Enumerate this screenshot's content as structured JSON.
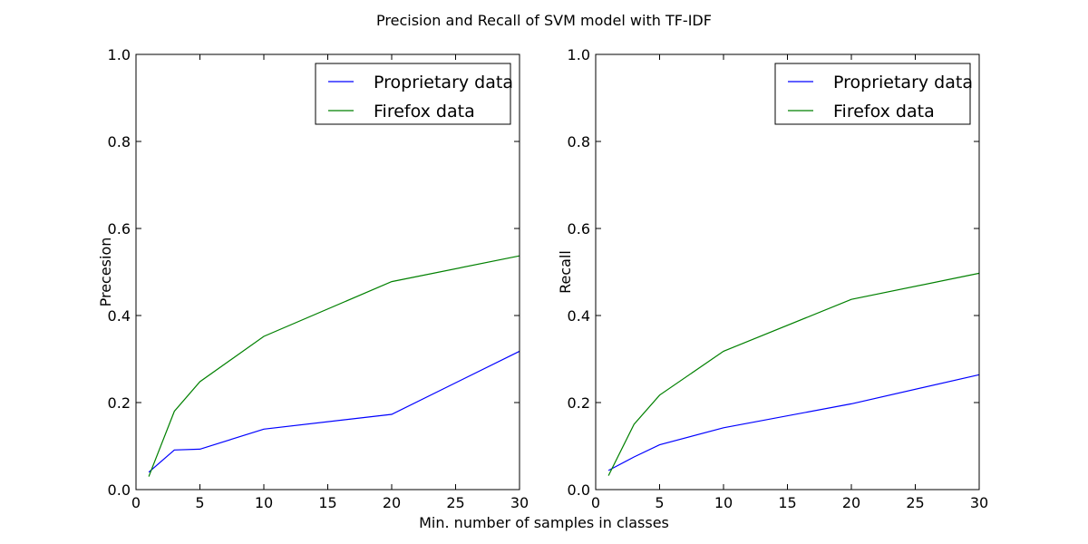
{
  "figure": {
    "title": "Precision and Recall of SVM model with TF-IDF",
    "shared_xlabel": "Min. number of samples in classes"
  },
  "colors": {
    "proprietary": "#0000ff",
    "firefox": "#008000"
  },
  "chart_data": [
    {
      "type": "line",
      "title": "",
      "xlabel": "",
      "ylabel": "Precesion",
      "xlim": [
        0,
        30
      ],
      "ylim": [
        0,
        1.0
      ],
      "xticks": [
        "0",
        "5",
        "10",
        "15",
        "20",
        "25",
        "30"
      ],
      "yticks": [
        "0.0",
        "0.2",
        "0.4",
        "0.6",
        "0.8",
        "1.0"
      ],
      "x": [
        1,
        3,
        5,
        10,
        20,
        30
      ],
      "legend_position": "top-right",
      "grid": false,
      "series": [
        {
          "name": "Proprietary data",
          "color": "#0000ff",
          "values": [
            0.04,
            0.091,
            0.093,
            0.139,
            0.173,
            0.318
          ]
        },
        {
          "name": "Firefox data",
          "color": "#008000",
          "values": [
            0.03,
            0.18,
            0.248,
            0.352,
            0.478,
            0.537
          ]
        }
      ]
    },
    {
      "type": "line",
      "title": "",
      "xlabel": "",
      "ylabel": "Recall",
      "xlim": [
        0,
        30
      ],
      "ylim": [
        0,
        1.0
      ],
      "xticks": [
        "0",
        "5",
        "10",
        "15",
        "20",
        "25",
        "30"
      ],
      "yticks": [
        "0.0",
        "0.2",
        "0.4",
        "0.6",
        "0.8",
        "1.0"
      ],
      "x": [
        1,
        3,
        5,
        10,
        20,
        30
      ],
      "legend_position": "top-right",
      "grid": false,
      "series": [
        {
          "name": "Proprietary data",
          "color": "#0000ff",
          "values": [
            0.044,
            0.075,
            0.103,
            0.142,
            0.197,
            0.264
          ]
        },
        {
          "name": "Firefox data",
          "color": "#008000",
          "values": [
            0.032,
            0.15,
            0.217,
            0.318,
            0.437,
            0.497
          ]
        }
      ]
    }
  ]
}
